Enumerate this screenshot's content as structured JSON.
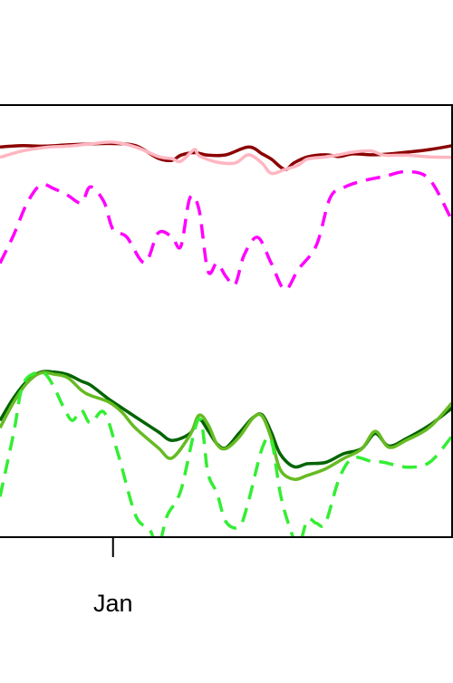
{
  "chart_data": {
    "type": "line",
    "title": "",
    "xlabel": "",
    "ylabel": "",
    "x_ticks": [
      {
        "label": "Jan",
        "x": 25
      }
    ],
    "xlim": [
      0,
      100
    ],
    "ylim": [
      0,
      100
    ],
    "grid": false,
    "legend": "none",
    "series": [
      {
        "color": "#8b0000",
        "dash": "solid",
        "x": [
          0,
          5,
          10,
          15,
          20,
          25,
          30,
          35,
          38,
          40,
          43,
          46,
          50,
          55,
          58,
          60,
          63,
          65,
          68,
          72,
          75,
          78,
          82,
          85,
          90,
          95,
          100
        ],
        "y": [
          90.3,
          90.6,
          90.5,
          90.8,
          91.0,
          91.1,
          90.6,
          87.7,
          87.2,
          88.4,
          89.0,
          88.4,
          88.5,
          90.3,
          88.7,
          87.5,
          85.1,
          86.6,
          88.0,
          88.5,
          88.1,
          88.7,
          88.5,
          88.6,
          89.1,
          89.7,
          90.6
        ]
      },
      {
        "color": "#ffb6c1",
        "dash": "solid",
        "x": [
          0,
          5,
          10,
          15,
          20,
          25,
          30,
          35,
          38,
          40,
          43,
          44,
          48,
          52,
          55,
          58,
          60,
          63,
          66,
          68,
          72,
          75,
          78,
          82,
          85,
          90,
          95,
          100
        ],
        "y": [
          87.9,
          89.4,
          90.2,
          90.5,
          91.0,
          91.4,
          90.3,
          88.1,
          87.6,
          87.0,
          89.7,
          88.3,
          86.8,
          86.6,
          88.5,
          86.5,
          84.2,
          85.1,
          86.1,
          87.5,
          88.0,
          88.5,
          89.1,
          89.4,
          88.4,
          88.4,
          88.0,
          87.9
        ]
      },
      {
        "color": "#ff00ff",
        "dash": "dashed",
        "x": [
          0,
          3,
          6,
          9,
          12,
          15,
          18,
          20,
          23,
          25,
          28,
          32,
          35,
          38,
          40,
          42,
          44,
          46,
          48,
          50,
          52,
          54,
          57,
          60,
          63,
          66,
          70,
          73,
          76,
          80,
          85,
          90,
          95,
          100
        ],
        "y": [
          63.4,
          69.9,
          77.3,
          81.5,
          80.6,
          79.1,
          77.4,
          81.1,
          77.6,
          71.2,
          69.5,
          63.5,
          70.4,
          69.5,
          67.3,
          78.5,
          75.9,
          61.6,
          63.4,
          60.3,
          58.5,
          65.3,
          69.4,
          63.4,
          57.3,
          62.0,
          67.6,
          78.5,
          80.9,
          82.4,
          83.5,
          84.6,
          82.8,
          73.2
        ]
      },
      {
        "color": "#006400",
        "dash": "solid",
        "x": [
          0,
          3,
          6,
          9,
          12,
          15,
          18,
          20,
          24,
          27,
          30,
          35,
          38,
          42,
          44,
          46,
          48,
          50,
          53,
          56,
          58,
          60,
          62,
          65,
          68,
          72,
          76,
          80,
          83,
          86,
          90,
          95,
          100
        ],
        "y": [
          27.0,
          32.2,
          36.1,
          38.2,
          38.2,
          37.6,
          36.1,
          35.2,
          32.0,
          29.9,
          27.8,
          24.4,
          22.4,
          24.0,
          27.3,
          24.7,
          21.6,
          20.7,
          24.2,
          27.7,
          28.3,
          24.3,
          19.2,
          16.3,
          17.0,
          17.3,
          19.3,
          20.5,
          24.0,
          21.1,
          22.9,
          25.9,
          29.9
        ]
      },
      {
        "color": "#66bb22",
        "dash": "solid",
        "x": [
          0,
          3,
          6,
          9,
          12,
          15,
          18,
          20,
          24,
          27,
          30,
          35,
          38,
          42,
          44,
          46,
          48,
          50,
          53,
          56,
          58,
          60,
          62,
          65,
          68,
          72,
          76,
          80,
          83,
          86,
          90,
          95,
          100
        ],
        "y": [
          25.3,
          31.2,
          35.7,
          38.0,
          37.7,
          36.9,
          34.0,
          32.8,
          31.3,
          28.9,
          25.2,
          20.7,
          18.3,
          23.6,
          28.2,
          26.1,
          21.5,
          20.5,
          23.3,
          27.6,
          28.0,
          22.9,
          15.6,
          13.4,
          14.3,
          15.8,
          18.2,
          20.4,
          24.5,
          20.8,
          22.5,
          25.4,
          31.1
        ]
      },
      {
        "color": "#33ee33",
        "dash": "dashed",
        "x": [
          0,
          3,
          5,
          8,
          10,
          12,
          14,
          16,
          18,
          20,
          23,
          26,
          30,
          33,
          35,
          37,
          40,
          44,
          46,
          48,
          50,
          53,
          55,
          58,
          60,
          62,
          64,
          66,
          68,
          70,
          72,
          75,
          78,
          82,
          85,
          90,
          95,
          100
        ],
        "y": [
          9.4,
          24.0,
          35.1,
          38.1,
          37.8,
          34.6,
          30.2,
          27.0,
          29.4,
          26.4,
          28.9,
          19.7,
          5.0,
          2.0,
          -2.0,
          5.0,
          10.8,
          27.4,
          14.8,
          10.2,
          3.5,
          2.5,
          8.5,
          20.6,
          22.4,
          10.1,
          2.5,
          -2.0,
          4.0,
          3.2,
          3.3,
          13.5,
          18.3,
          17.6,
          17.3,
          16.2,
          17.3,
          23.4
        ]
      }
    ]
  }
}
